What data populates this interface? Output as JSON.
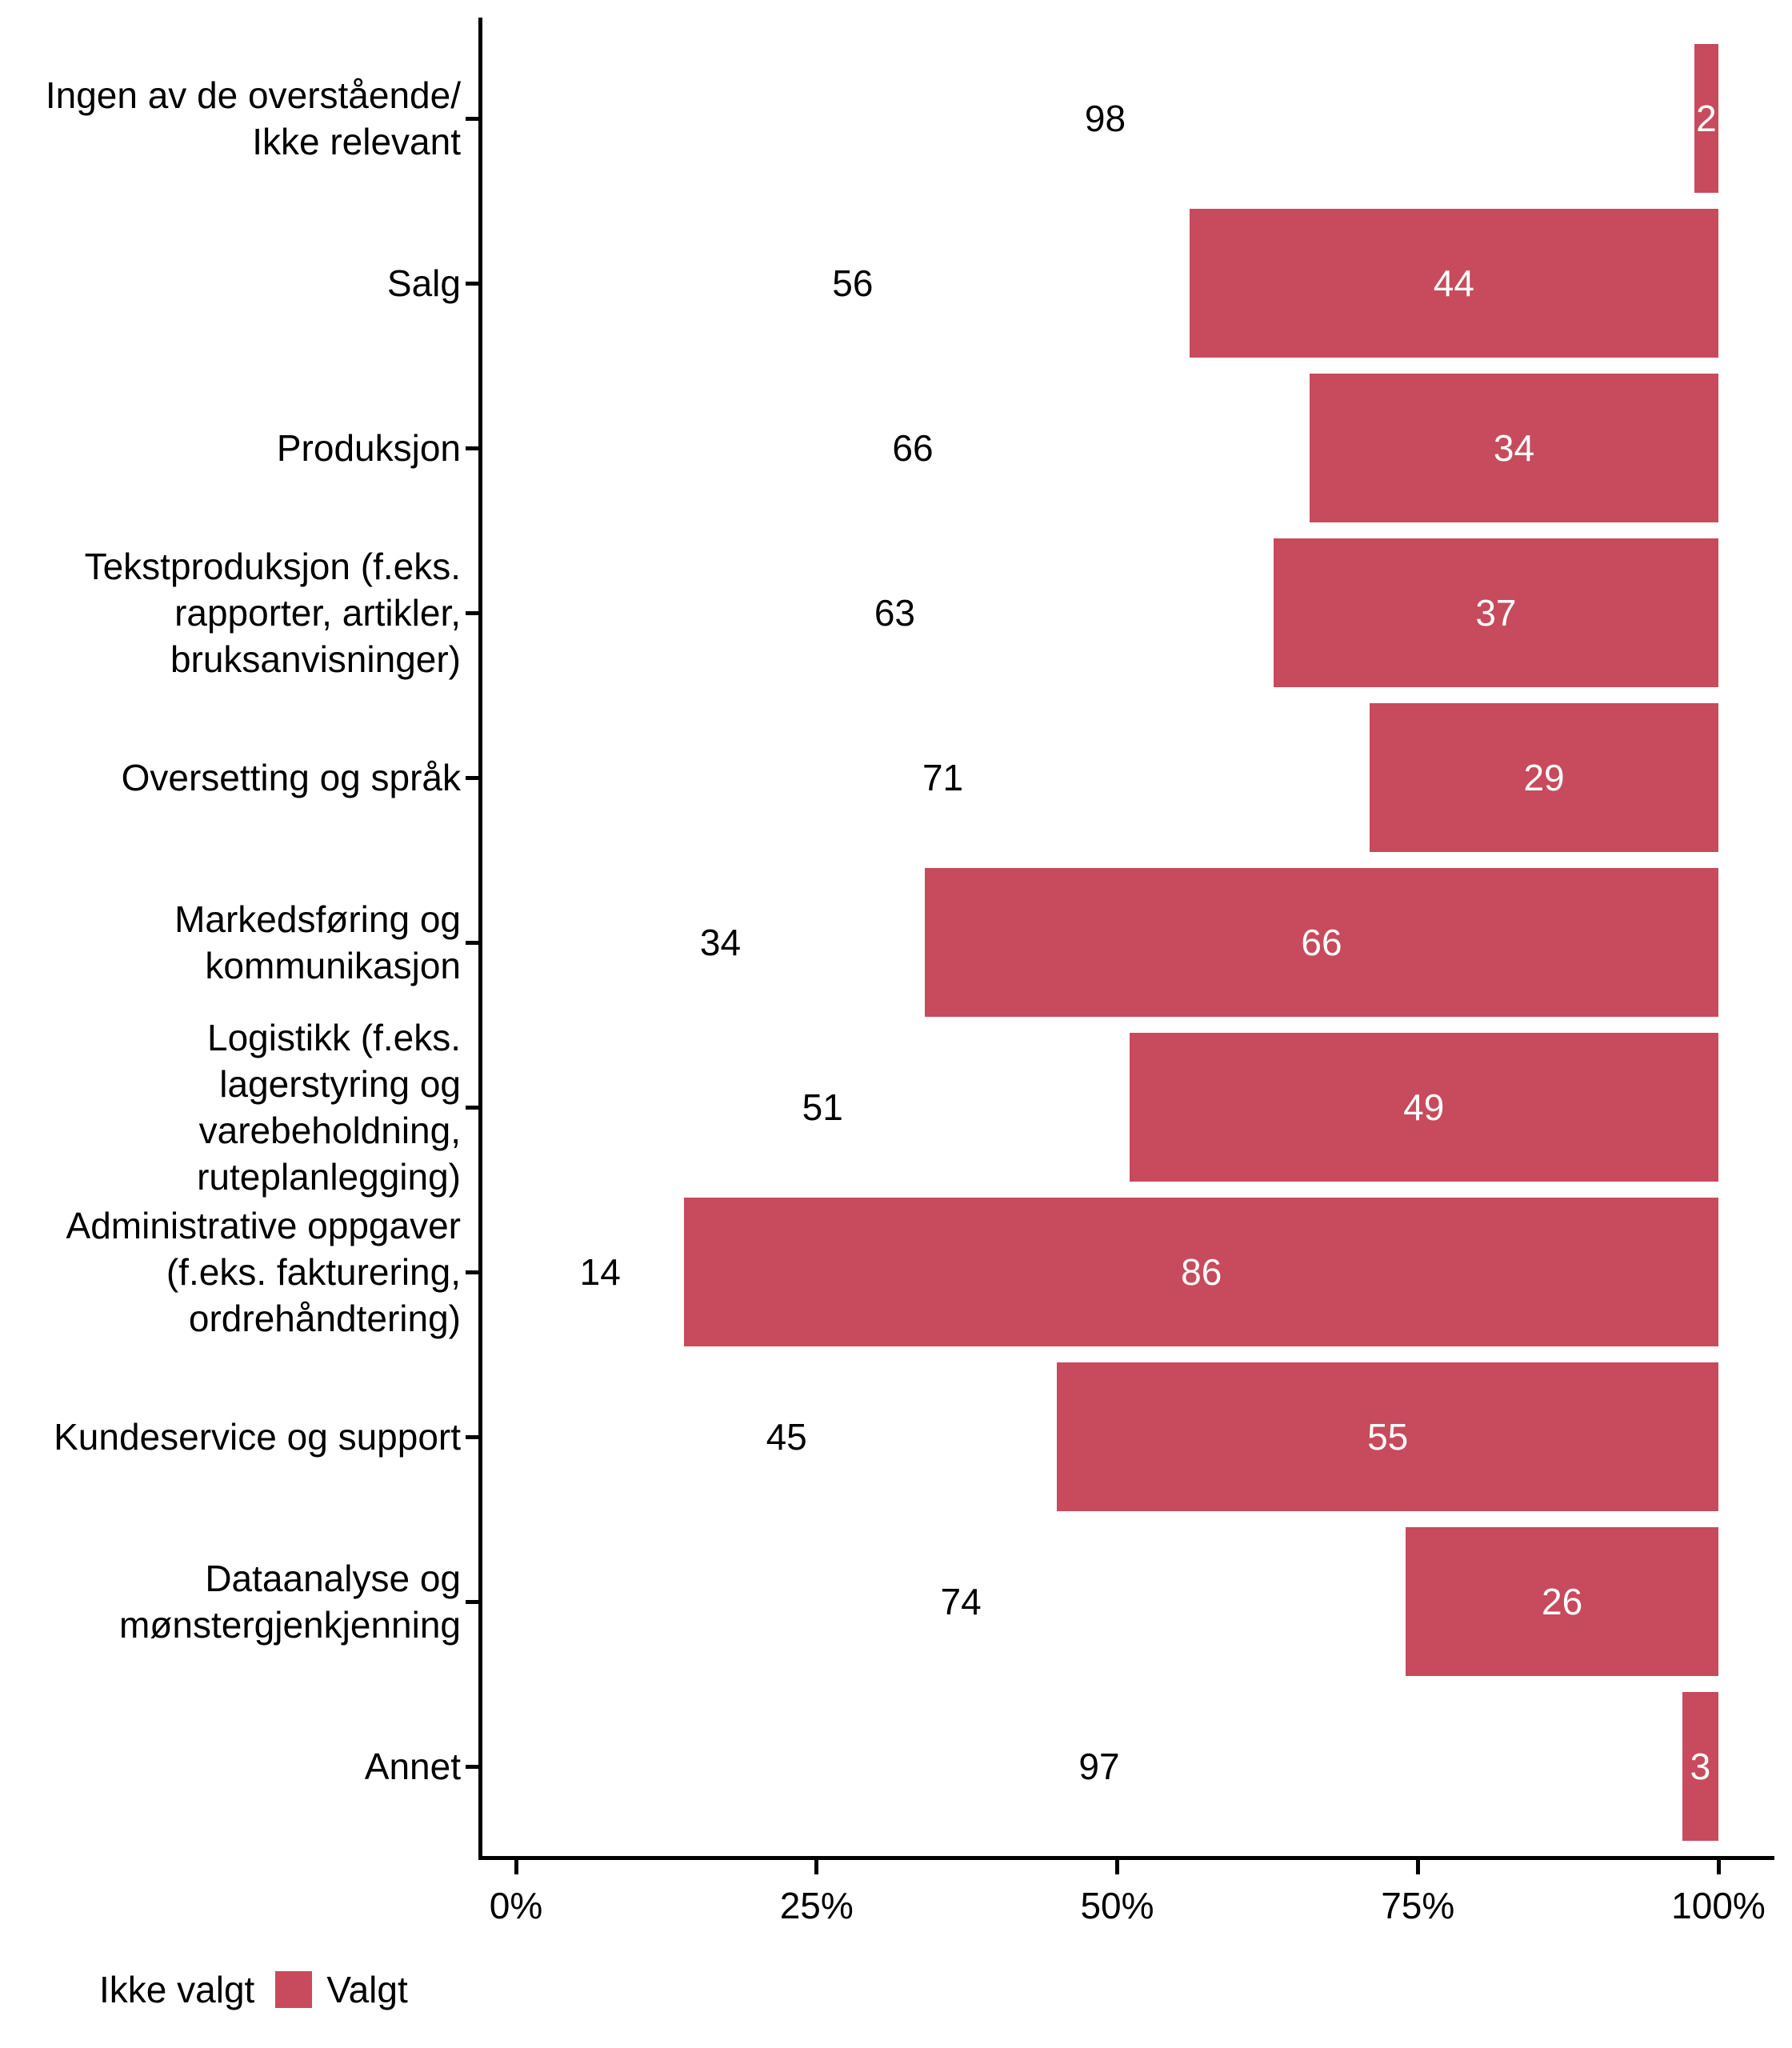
{
  "chart_data": {
    "type": "bar",
    "orientation": "horizontal",
    "stacked": true,
    "percent_scale": true,
    "title": "",
    "xlabel": "",
    "ylabel": "",
    "xlim": [
      0,
      100
    ],
    "grid": false,
    "legend_position": "bottom-left",
    "categories": [
      "Ingen av de overstående/\nIkke relevant",
      "Salg",
      "Produksjon",
      "Tekstproduksjon (f.eks.\nrapporter, artikler,\nbruksanvisninger)",
      "Oversetting og språk",
      "Markedsføring og\nkommunikasjon",
      "Logistikk (f.eks.\nlagerstyring og\nvarebeholdning,\nruteplanlegging)",
      "Administrative oppgaver\n(f.eks. fakturering,\nordrehåndtering)",
      "Kundeservice og support",
      "Dataanalyse og\nmønstergjenkjenning",
      "Annet"
    ],
    "series": [
      {
        "name": "Ikke valgt",
        "color": "#FFFFFF",
        "label_color": "#000000",
        "values": [
          98,
          56,
          66,
          63,
          71,
          34,
          51,
          14,
          45,
          74,
          97
        ]
      },
      {
        "name": "Valgt",
        "color": "#C74B5C",
        "label_color": "#FFFFFF",
        "values": [
          2,
          44,
          34,
          37,
          29,
          66,
          49,
          86,
          55,
          26,
          3
        ]
      }
    ],
    "x_ticks": [
      "0%",
      "25%",
      "50%",
      "75%",
      "100%"
    ],
    "x_tick_values": [
      0,
      25,
      50,
      75,
      100
    ]
  },
  "colors": {
    "accent": "#C74B5C",
    "axis": "#000000",
    "background": "#FFFFFF",
    "text": "#000000"
  }
}
